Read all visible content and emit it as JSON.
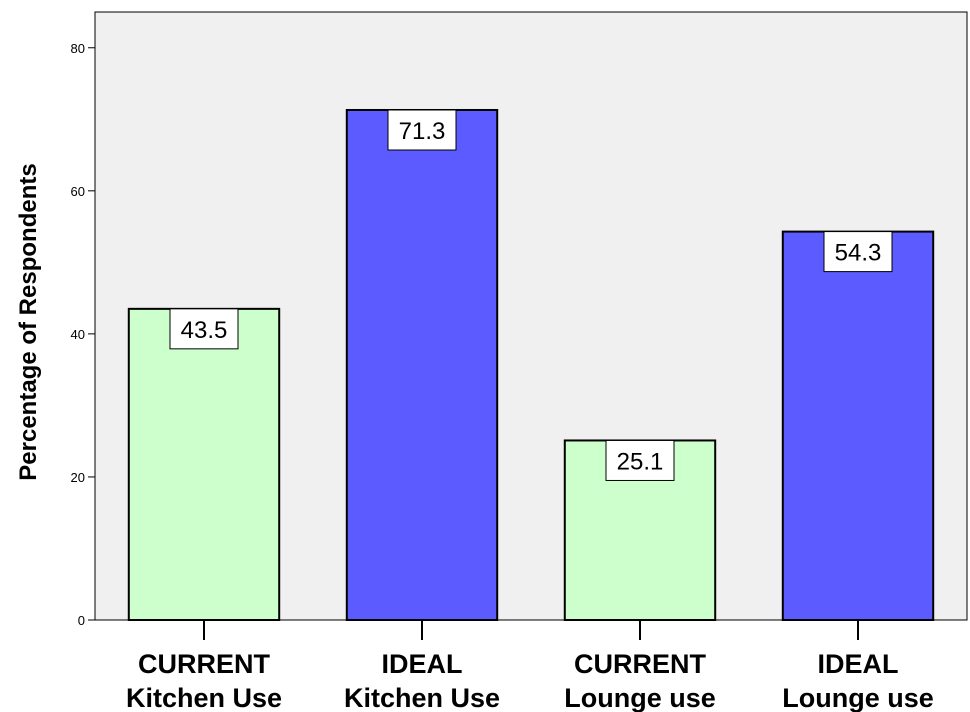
{
  "chart_data": {
    "type": "bar",
    "categories": [
      [
        "CURRENT",
        "Kitchen Use"
      ],
      [
        "IDEAL",
        "Kitchen Use"
      ],
      [
        "CURRENT",
        "Lounge use"
      ],
      [
        "IDEAL",
        "Lounge use"
      ]
    ],
    "values": [
      43.5,
      71.3,
      25.1,
      54.3
    ],
    "value_labels": [
      "43.5",
      "71.3",
      "25.1",
      "54.3"
    ],
    "bar_colors": [
      "#ccffcc",
      "#5b5bff",
      "#ccffcc",
      "#5b5bff"
    ],
    "plot_background": "#f0f0f0",
    "title": "",
    "xlabel": "",
    "ylabel": "Percentage of Respondents",
    "ylim": [
      0,
      85
    ],
    "yticks": [
      0,
      20,
      40,
      60,
      80
    ],
    "grid": false
  }
}
